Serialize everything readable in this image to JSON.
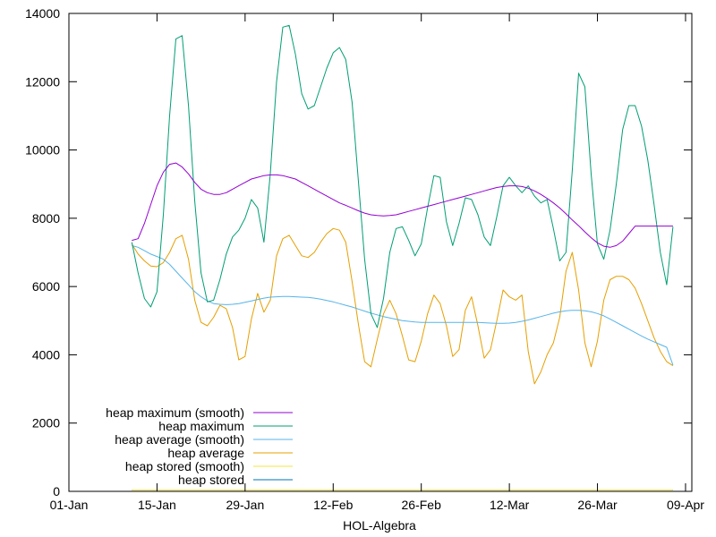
{
  "chart_data": {
    "type": "line",
    "xlabel": "HOL-Algebra",
    "ylabel": "",
    "ylim": [
      0,
      14000
    ],
    "xlim": [
      "2020-01-01",
      "2020-04-09"
    ],
    "grid": false,
    "legend_position": "bottom-left",
    "x_ticks": [
      "01-Jan",
      "15-Jan",
      "29-Jan",
      "12-Feb",
      "26-Feb",
      "12-Mar",
      "26-Mar",
      "09-Apr"
    ],
    "y_ticks": [
      "0",
      "2000",
      "4000",
      "6000",
      "8000",
      "10000",
      "12000",
      "14000"
    ],
    "x": [
      "2020-01-11",
      "2020-01-12",
      "2020-01-13",
      "2020-01-14",
      "2020-01-15",
      "2020-01-16",
      "2020-01-17",
      "2020-01-18",
      "2020-01-19",
      "2020-01-20",
      "2020-01-21",
      "2020-01-22",
      "2020-01-23",
      "2020-01-24",
      "2020-01-25",
      "2020-01-26",
      "2020-01-27",
      "2020-01-28",
      "2020-01-29",
      "2020-01-30",
      "2020-01-31",
      "2020-02-01",
      "2020-02-02",
      "2020-02-03",
      "2020-02-04",
      "2020-02-05",
      "2020-02-06",
      "2020-02-07",
      "2020-02-08",
      "2020-02-09",
      "2020-02-10",
      "2020-02-11",
      "2020-02-12",
      "2020-02-13",
      "2020-02-14",
      "2020-02-15",
      "2020-02-16",
      "2020-02-17",
      "2020-02-18",
      "2020-02-19",
      "2020-02-20",
      "2020-02-21",
      "2020-02-22",
      "2020-02-23",
      "2020-02-24",
      "2020-02-25",
      "2020-02-26",
      "2020-02-27",
      "2020-02-28",
      "2020-02-29",
      "2020-03-01",
      "2020-03-02",
      "2020-03-03",
      "2020-03-04",
      "2020-03-05",
      "2020-03-06",
      "2020-03-07",
      "2020-03-08",
      "2020-03-09",
      "2020-03-10",
      "2020-03-11",
      "2020-03-12",
      "2020-03-13",
      "2020-03-14",
      "2020-03-15",
      "2020-03-16",
      "2020-03-17",
      "2020-03-18",
      "2020-03-19",
      "2020-03-20",
      "2020-03-21",
      "2020-03-22",
      "2020-03-23",
      "2020-03-24",
      "2020-03-25",
      "2020-03-26",
      "2020-03-27",
      "2020-03-28",
      "2020-03-29",
      "2020-03-30",
      "2020-03-31",
      "2020-04-01",
      "2020-04-02",
      "2020-04-03",
      "2020-04-04",
      "2020-04-05"
    ],
    "series": [
      {
        "name": "heap maximum (smooth)",
        "color": "#9400d3",
        "width": 1,
        "values": [
          7350,
          7400,
          7850,
          8400,
          8950,
          9350,
          9580,
          9620,
          9500,
          9300,
          9050,
          8850,
          8750,
          8700,
          8700,
          8750,
          8850,
          8950,
          9050,
          9150,
          9200,
          9250,
          9270,
          9270,
          9250,
          9200,
          9150,
          9050,
          8950,
          8850,
          8750,
          8650,
          8550,
          8450,
          8380,
          8300,
          8220,
          8150,
          8100,
          8080,
          8070,
          8080,
          8100,
          8150,
          8200,
          8250,
          8300,
          8350,
          8400,
          8450,
          8500,
          8550,
          8600,
          8650,
          8700,
          8750,
          8800,
          8850,
          8900,
          8930,
          8950,
          8950,
          8930,
          8880,
          8800,
          8700,
          8580,
          8450,
          8300,
          8130,
          7950,
          7780,
          7600,
          7430,
          7280,
          7180,
          7150,
          7200,
          7330,
          7550,
          7770,
          7770,
          7770,
          7770,
          7770,
          7770
        ]
      },
      {
        "name": "heap maximum",
        "color": "#009e73",
        "width": 1,
        "values": [
          7300,
          6400,
          5650,
          5400,
          5850,
          8100,
          11000,
          13250,
          13350,
          11300,
          8500,
          6400,
          5550,
          5600,
          6200,
          6950,
          7450,
          7650,
          8000,
          8550,
          8300,
          7300,
          9300,
          12000,
          13600,
          13650,
          12800,
          11650,
          11200,
          11300,
          11850,
          12400,
          12850,
          13000,
          12650,
          11400,
          9100,
          6800,
          5200,
          4800,
          5650,
          7000,
          7700,
          7750,
          7350,
          6900,
          7250,
          8300,
          9250,
          9200,
          7900,
          7200,
          7850,
          8600,
          8550,
          8100,
          7450,
          7200,
          8050,
          8950,
          9200,
          8950,
          8750,
          8950,
          8650,
          8450,
          8550,
          7700,
          6750,
          7000,
          9400,
          12250,
          11850,
          9300,
          7250,
          6800,
          7650,
          9000,
          10600,
          11300,
          11300,
          10700,
          9700,
          8400,
          7000,
          6050
        ]
      },
      {
        "name": "heap average (smooth)",
        "color": "#56b4e9",
        "width": 1,
        "values": [
          7200,
          7150,
          7050,
          6950,
          6880,
          6800,
          6650,
          6450,
          6250,
          6050,
          5850,
          5700,
          5580,
          5500,
          5480,
          5470,
          5480,
          5500,
          5540,
          5580,
          5620,
          5660,
          5690,
          5700,
          5710,
          5710,
          5700,
          5690,
          5680,
          5660,
          5630,
          5590,
          5550,
          5500,
          5450,
          5400,
          5340,
          5280,
          5220,
          5170,
          5120,
          5080,
          5040,
          5000,
          4980,
          4960,
          4950,
          4950,
          4950,
          4950,
          4950,
          4950,
          4950,
          4950,
          4950,
          4950,
          4940,
          4930,
          4920,
          4920,
          4930,
          4950,
          4980,
          5020,
          5070,
          5120,
          5170,
          5220,
          5260,
          5290,
          5300,
          5300,
          5290,
          5260,
          5210,
          5140,
          5050,
          4950,
          4850,
          4750,
          4650,
          4550,
          4460,
          4380,
          4300,
          4220
        ]
      },
      {
        "name": "heap average",
        "color": "#e69f00",
        "width": 1,
        "values": [
          7250,
          6950,
          6750,
          6600,
          6580,
          6700,
          7000,
          7400,
          7500,
          6800,
          5600,
          4950,
          4850,
          5100,
          5450,
          5350,
          4800,
          3850,
          3950,
          5050,
          5800,
          5250,
          5600,
          6900,
          7400,
          7500,
          7200,
          6900,
          6850,
          7000,
          7300,
          7550,
          7700,
          7650,
          7300,
          6150,
          4900,
          3800,
          3650,
          4450,
          5200,
          5600,
          5200,
          4550,
          3850,
          3800,
          4400,
          5200,
          5750,
          5500,
          4850,
          3950,
          4150,
          5300,
          5700,
          4850,
          3900,
          4150,
          5000,
          5900,
          5700,
          5600,
          5750,
          4100,
          3150,
          3500,
          4000,
          4350,
          5100,
          6450,
          7000,
          5900,
          4350,
          3650,
          4400,
          5600,
          6200,
          6300,
          6300,
          6200,
          5950,
          5500,
          5000,
          4500,
          4100,
          3800
        ]
      },
      {
        "name": "heap stored (smooth)",
        "color": "#f0e442",
        "width": 1,
        "values": [
          40,
          40,
          40,
          40,
          40,
          40,
          40,
          40,
          40,
          40,
          40,
          40,
          40,
          40,
          40,
          40,
          40,
          40,
          40,
          40,
          40,
          40,
          40,
          40,
          40,
          40,
          40,
          40,
          40,
          40,
          40,
          40,
          40,
          40,
          40,
          40,
          40,
          40,
          40,
          40,
          40,
          40,
          40,
          40,
          40,
          40,
          40,
          40,
          40,
          40,
          40,
          40,
          40,
          40,
          40,
          40,
          40,
          40,
          40,
          40,
          40,
          40,
          40,
          40,
          40,
          40,
          40,
          40,
          40,
          40,
          40,
          40,
          40,
          40,
          40,
          40,
          40,
          40,
          40,
          40,
          40,
          40,
          40,
          40,
          40,
          40
        ]
      },
      {
        "name": "heap stored",
        "color": "#0072b2",
        "width": 1,
        "values": [
          40,
          40,
          40,
          40,
          40,
          40,
          40,
          40,
          40,
          40,
          40,
          40,
          40,
          40,
          40,
          40,
          40,
          40,
          40,
          40,
          40,
          40,
          40,
          40,
          40,
          40,
          40,
          40,
          40,
          40,
          40,
          40,
          40,
          40,
          40,
          40,
          40,
          40,
          40,
          40,
          40,
          40,
          40,
          40,
          40,
          40,
          40,
          40,
          40,
          40,
          40,
          40,
          40,
          40,
          40,
          40,
          40,
          40,
          40,
          40,
          40,
          40,
          40,
          40,
          40,
          40,
          40,
          40,
          40,
          40,
          40,
          40,
          40,
          40,
          40,
          40,
          40,
          40,
          40,
          40,
          40,
          40,
          40,
          40,
          40,
          40
        ]
      }
    ],
    "tail": {
      "x": [
        "2020-04-06"
      ],
      "values": {
        "heap maximum (smooth)": [
          7770
        ],
        "heap maximum": [
          7750
        ],
        "heap average (smooth)": [
          3700
        ],
        "heap average": [
          3680
        ],
        "heap stored (smooth)": [
          40
        ],
        "heap stored": [
          40
        ]
      }
    }
  }
}
